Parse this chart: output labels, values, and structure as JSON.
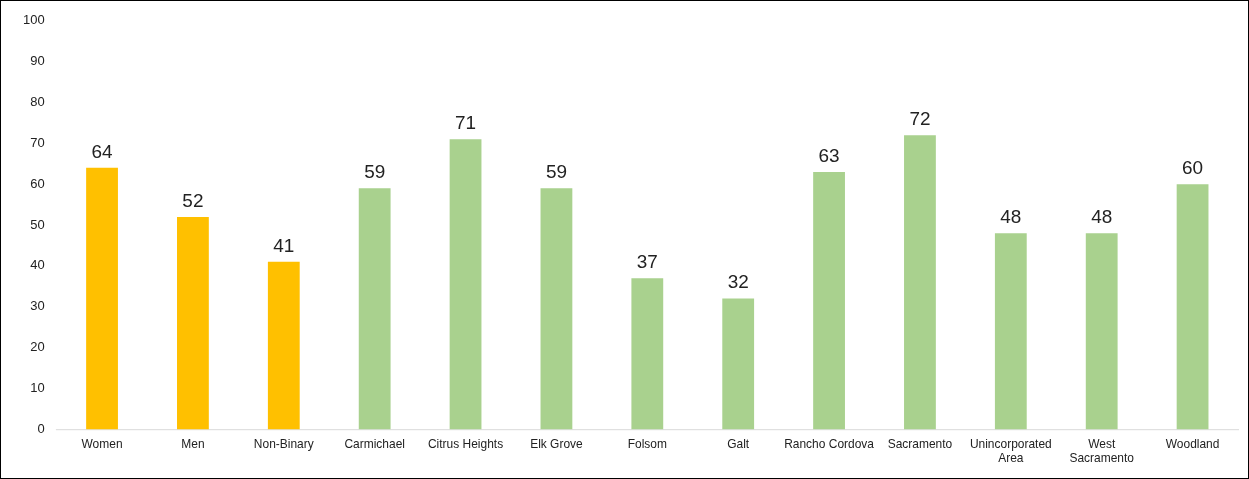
{
  "chart_data": {
    "type": "bar",
    "categories": [
      "Women",
      "Men",
      "Non-Binary",
      "Carmichael",
      "Citrus Heights",
      "Elk Grove",
      "Folsom",
      "Galt",
      "Rancho Cordova",
      "Sacramento",
      "Unincorporated Area",
      "West Sacramento",
      "Woodland"
    ],
    "values": [
      64,
      52,
      41,
      59,
      71,
      59,
      37,
      32,
      63,
      72,
      48,
      48,
      60
    ],
    "colors": [
      "#ffc000",
      "#ffc000",
      "#ffc000",
      "#a9d18e",
      "#a9d18e",
      "#a9d18e",
      "#a9d18e",
      "#a9d18e",
      "#a9d18e",
      "#a9d18e",
      "#a9d18e",
      "#a9d18e",
      "#a9d18e"
    ],
    "ylim": [
      0,
      100
    ],
    "yticks": [
      0,
      10,
      20,
      30,
      40,
      50,
      60,
      70,
      80,
      90,
      100
    ],
    "data_labels": true,
    "grid": false,
    "legend": false
  }
}
